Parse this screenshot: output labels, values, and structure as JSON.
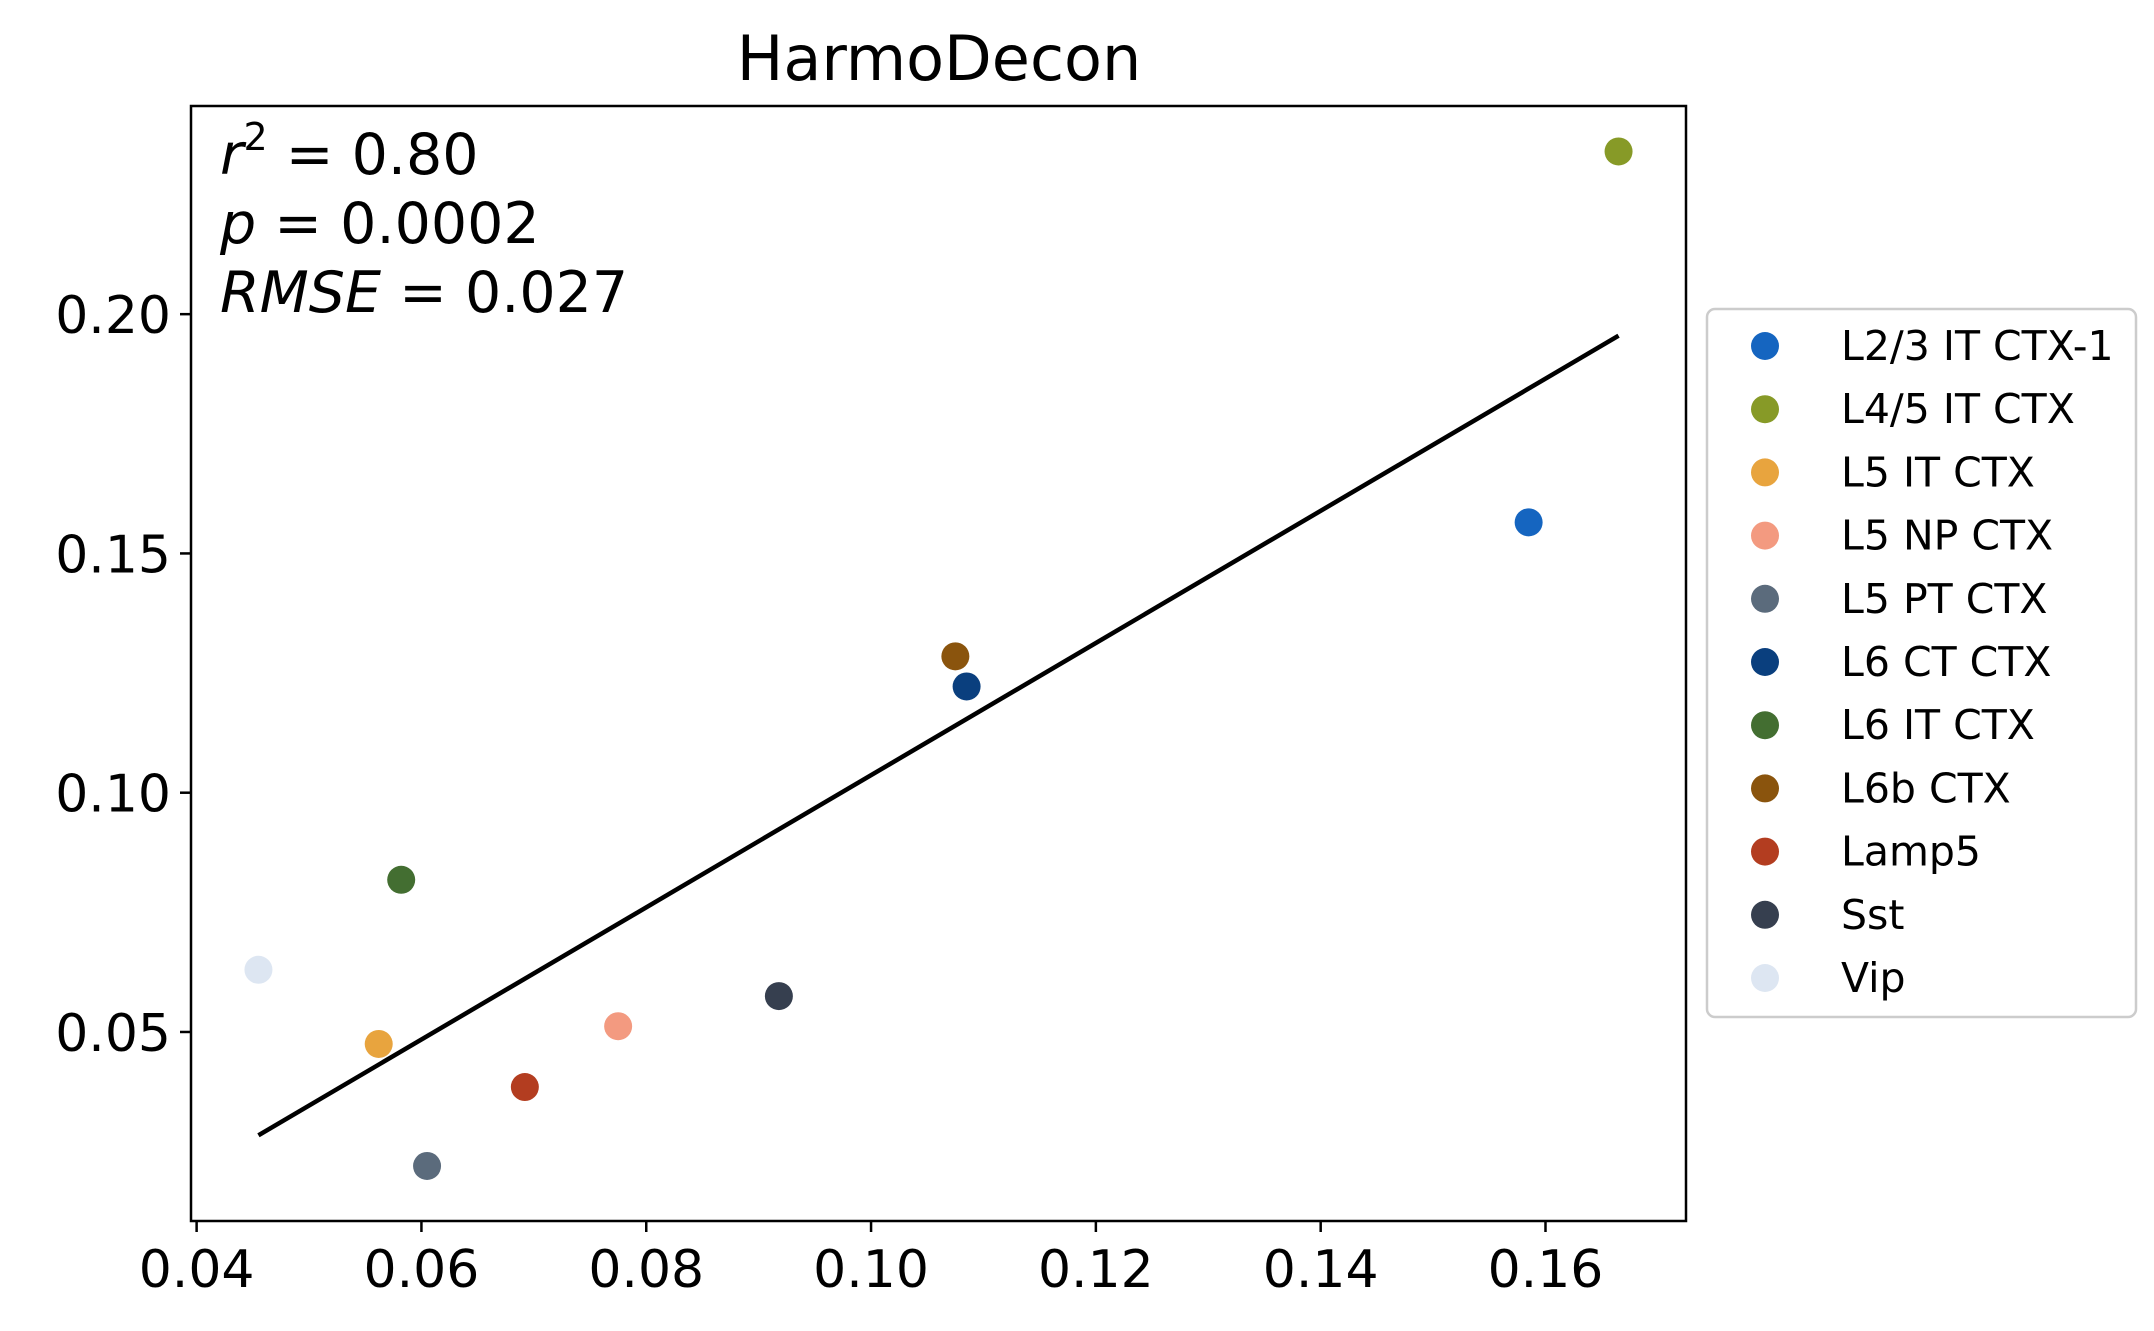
{
  "chart_data": {
    "type": "scatter",
    "title": "HarmoDecon",
    "xlabel": "",
    "ylabel": "",
    "xlim": [
      0.0395,
      0.1725
    ],
    "ylim": [
      0.0105,
      0.2435
    ],
    "xticks": [
      0.04,
      0.06,
      0.08,
      0.1,
      0.12,
      0.14,
      0.16
    ],
    "xtick_labels": [
      "0.04",
      "0.06",
      "0.08",
      "0.10",
      "0.12",
      "0.14",
      "0.16"
    ],
    "yticks": [
      0.05,
      0.1,
      0.15,
      0.2
    ],
    "ytick_labels": [
      "0.05",
      "0.10",
      "0.15",
      "0.20"
    ],
    "grid": false,
    "legend_position": "outside-right",
    "annotations": {
      "r2_symbol": "r",
      "r2_sup": "2",
      "r2_value": " = 0.80",
      "p_symbol": "p",
      "p_value": " = 0.0002",
      "rmse_symbol": "RMSE",
      "rmse_value": " = 0.027"
    },
    "fit_line": {
      "x": [
        0.0455,
        0.1665
      ],
      "y": [
        0.0284,
        0.1955
      ],
      "color": "#000000"
    },
    "series": [
      {
        "name": "L2/3 IT CTX-1",
        "x": 0.1585,
        "y": 0.1565,
        "color": "#1565c0"
      },
      {
        "name": "L4/5 IT CTX",
        "x": 0.1665,
        "y": 0.234,
        "color": "#879a27"
      },
      {
        "name": "L5 IT CTX",
        "x": 0.0562,
        "y": 0.0475,
        "color": "#e8a43e"
      },
      {
        "name": "L5 NP CTX",
        "x": 0.0775,
        "y": 0.0512,
        "color": "#f39a80"
      },
      {
        "name": "L5 PT CTX",
        "x": 0.0605,
        "y": 0.022,
        "color": "#5b6b7c"
      },
      {
        "name": "L6 CT CTX",
        "x": 0.1085,
        "y": 0.1222,
        "color": "#0a3f7e"
      },
      {
        "name": "L6 IT CTX",
        "x": 0.0582,
        "y": 0.0818,
        "color": "#436e31"
      },
      {
        "name": "L6b CTX",
        "x": 0.1075,
        "y": 0.1285,
        "color": "#8a540d"
      },
      {
        "name": "Lamp5",
        "x": 0.0692,
        "y": 0.0385,
        "color": "#b33d20"
      },
      {
        "name": "Sst",
        "x": 0.0918,
        "y": 0.0575,
        "color": "#363f4f"
      },
      {
        "name": "Vip",
        "x": 0.0455,
        "y": 0.063,
        "color": "#dde6f2"
      }
    ]
  }
}
